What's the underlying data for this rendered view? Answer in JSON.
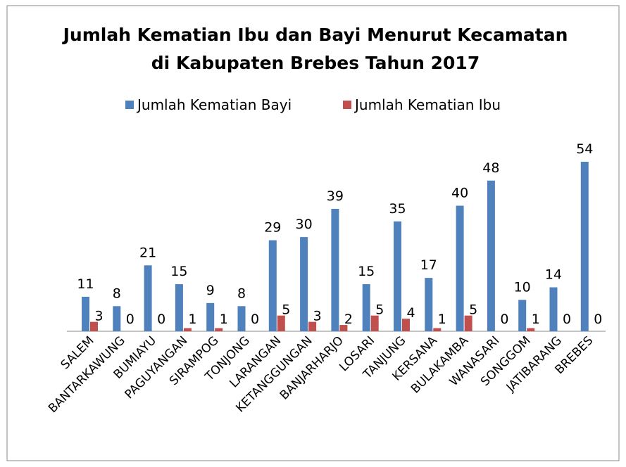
{
  "chart_data": {
    "type": "bar",
    "title": [
      "Jumlah Kematian Ibu dan Bayi Menurut Kecamatan",
      "di Kabupaten Brebes Tahun 2017"
    ],
    "categories": [
      "SALEM",
      "BANTARKAWUNG",
      "BUMIAYU",
      "PAGUYANGAN",
      "SIRAMPOG",
      "TONJONG",
      "LARANGAN",
      "KETANGGUNGAN",
      "BANJARHARJO",
      "LOSARI",
      "TANJUNG",
      "KERSANA",
      "BULAKAMBA",
      "WANASARI",
      "SONGGOM",
      "JATIBARANG",
      "BREBES"
    ],
    "series": [
      {
        "name": "Jumlah Kematian  Bayi",
        "color": "#4f81bd",
        "values": [
          11,
          8,
          21,
          15,
          9,
          8,
          29,
          30,
          39,
          15,
          35,
          17,
          40,
          48,
          10,
          14,
          54
        ]
      },
      {
        "name": "Jumlah Kematian Ibu",
        "color": "#c0504d",
        "values": [
          3,
          0,
          0,
          1,
          1,
          0,
          5,
          3,
          2,
          5,
          4,
          1,
          5,
          0,
          1,
          0,
          0
        ]
      }
    ],
    "legend": "top"
  }
}
